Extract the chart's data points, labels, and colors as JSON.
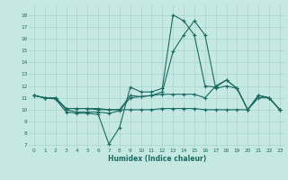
{
  "xlabel": "Humidex (Indice chaleur)",
  "bg_color": "#c5e8e3",
  "grid_color": "#a8d4ce",
  "line_color": "#1a6b60",
  "xlim": [
    -0.5,
    23.5
  ],
  "ylim": [
    6.8,
    18.8
  ],
  "yticks": [
    7,
    8,
    9,
    10,
    11,
    12,
    13,
    14,
    15,
    16,
    17,
    18
  ],
  "xticks": [
    0,
    1,
    2,
    3,
    4,
    5,
    6,
    7,
    8,
    9,
    10,
    11,
    12,
    13,
    14,
    15,
    16,
    17,
    18,
    19,
    20,
    21,
    22,
    23
  ],
  "lines": [
    [
      11.2,
      11.0,
      10.9,
      9.8,
      9.7,
      9.7,
      9.6,
      7.1,
      8.5,
      11.9,
      11.5,
      11.5,
      11.8,
      18.0,
      17.5,
      16.3,
      12.0,
      11.9,
      12.5,
      11.8,
      10.0,
      11.2,
      11.0,
      10.0
    ],
    [
      11.2,
      11.0,
      11.0,
      10.0,
      9.8,
      9.8,
      9.8,
      9.7,
      9.9,
      11.0,
      11.1,
      11.2,
      11.5,
      14.9,
      16.3,
      17.5,
      16.3,
      11.8,
      12.0,
      11.8,
      10.0,
      11.2,
      11.0,
      10.0
    ],
    [
      11.2,
      11.0,
      11.0,
      10.1,
      10.1,
      10.1,
      10.1,
      10.0,
      10.0,
      10.0,
      10.0,
      10.0,
      10.1,
      10.1,
      10.1,
      10.1,
      10.0,
      10.0,
      10.0,
      10.0,
      10.0,
      11.0,
      11.0,
      10.0
    ],
    [
      11.2,
      11.0,
      11.0,
      10.1,
      10.1,
      10.1,
      10.0,
      10.0,
      10.0,
      11.2,
      11.1,
      11.2,
      11.3,
      11.3,
      11.3,
      11.3,
      11.0,
      12.0,
      12.5,
      11.8,
      10.0,
      11.2,
      11.0,
      10.0
    ]
  ]
}
